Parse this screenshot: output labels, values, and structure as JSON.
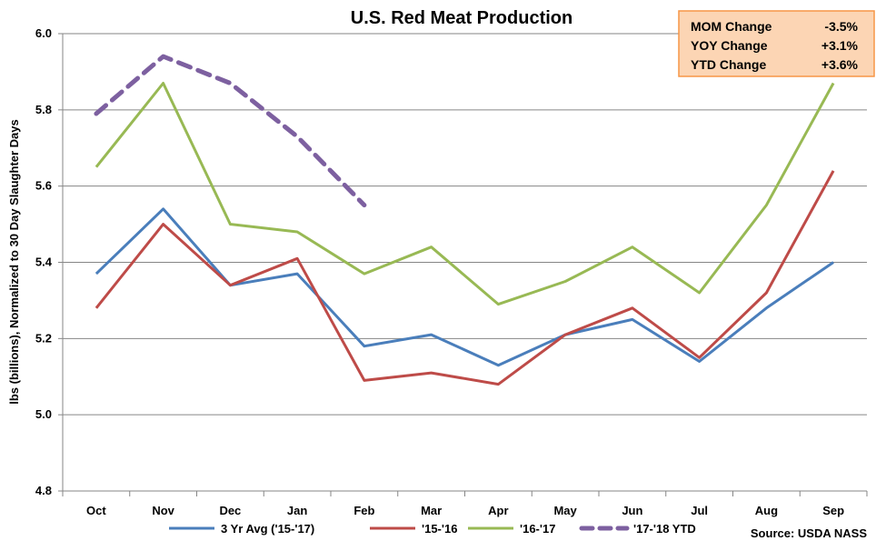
{
  "chart_data": {
    "type": "line",
    "title": "U.S. Red Meat Production",
    "ylabel": "lbs (billions), Normalized to 30 Day Slaughter Days",
    "xlabel": "",
    "categories": [
      "Oct",
      "Nov",
      "Dec",
      "Jan",
      "Feb",
      "Mar",
      "Apr",
      "May",
      "Jun",
      "Jul",
      "Aug",
      "Sep"
    ],
    "ylim": [
      4.8,
      6.0
    ],
    "yticks": [
      "6.0",
      "5.8",
      "5.6",
      "5.4",
      "5.2",
      "5.0",
      "4.8"
    ],
    "grid": true,
    "legend_position": "bottom",
    "series": [
      {
        "name": "3 Yr Avg ('15-'17)",
        "color": "#4a7ebb",
        "dashed": false,
        "values": [
          5.37,
          5.54,
          5.34,
          5.37,
          5.18,
          5.21,
          5.13,
          5.21,
          5.25,
          5.14,
          5.28,
          5.4
        ]
      },
      {
        "name": "'15-'16",
        "color": "#be4b48",
        "dashed": false,
        "values": [
          5.28,
          5.5,
          5.34,
          5.41,
          5.09,
          5.11,
          5.08,
          5.21,
          5.28,
          5.15,
          5.32,
          5.64
        ]
      },
      {
        "name": "'16-'17",
        "color": "#98b954",
        "dashed": false,
        "values": [
          5.65,
          5.87,
          5.5,
          5.48,
          5.37,
          5.44,
          5.29,
          5.35,
          5.44,
          5.32,
          5.55,
          5.87
        ]
      },
      {
        "name": "'17-'18 YTD",
        "color": "#7d60a0",
        "dashed": true,
        "values": [
          5.79,
          5.94,
          5.87,
          5.73,
          5.55,
          null,
          null,
          null,
          null,
          null,
          null,
          null
        ]
      }
    ],
    "annotations": {
      "source": "Source: USDA NASS",
      "stats": [
        {
          "label": "MOM Change",
          "value": "-3.5%"
        },
        {
          "label": "YOY Change",
          "value": "+3.1%"
        },
        {
          "label": "YTD Change",
          "value": "+3.6%"
        }
      ]
    }
  },
  "colors": {
    "grid": "#868686",
    "axis": "#868686",
    "stats_box_fill": "#fcd5b4",
    "stats_box_border": "#f79646"
  }
}
